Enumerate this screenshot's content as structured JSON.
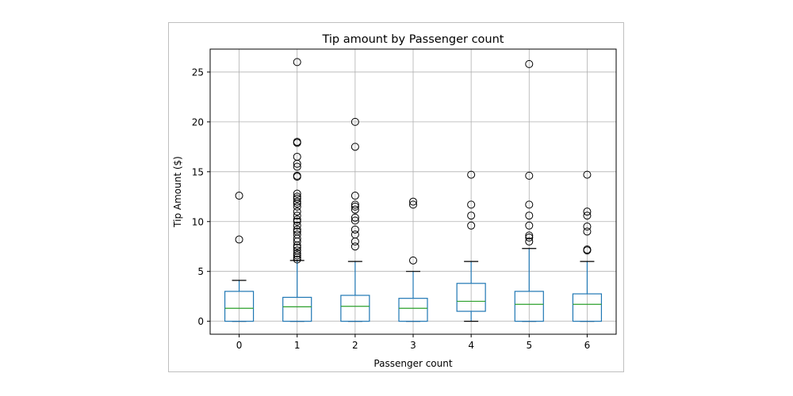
{
  "chart_data": {
    "type": "boxplot",
    "title": "Tip amount by Passenger count",
    "xlabel": "Passenger count",
    "ylabel": "Tip Amount ($)",
    "ylim": [
      -1.3,
      27.3
    ],
    "yticks": [
      0,
      5,
      10,
      15,
      20,
      25
    ],
    "grid": true,
    "categories": [
      "0",
      "1",
      "2",
      "3",
      "4",
      "5",
      "6"
    ],
    "boxes": [
      {
        "q1": 0,
        "median": 1.3,
        "q3": 3.0,
        "whisker_low": 0,
        "whisker_high": 4.1,
        "outliers": [
          12.6,
          8.2
        ]
      },
      {
        "q1": 0,
        "median": 1.45,
        "q3": 2.4,
        "whisker_low": 0,
        "whisker_high": 6.1,
        "outliers": [
          26.0,
          18.0,
          17.9,
          16.5,
          15.8,
          15.5,
          14.6,
          14.5,
          12.8,
          12.5,
          12.3,
          12.0,
          11.8,
          11.5,
          11.0,
          10.6,
          10.2,
          10.0,
          9.6,
          9.2,
          9.0,
          8.7,
          8.3,
          8.0,
          7.6,
          7.4,
          7.1,
          6.8,
          6.6,
          6.4,
          6.2
        ]
      },
      {
        "q1": 0,
        "median": 1.5,
        "q3": 2.6,
        "whisker_low": 0,
        "whisker_high": 6.0,
        "outliers": [
          20.0,
          17.5,
          12.6,
          11.7,
          11.5,
          11.2,
          10.4,
          10.1,
          9.2,
          8.7,
          8.0,
          7.5
        ]
      },
      {
        "q1": 0,
        "median": 1.3,
        "q3": 2.3,
        "whisker_low": 0,
        "whisker_high": 5.0,
        "outliers": [
          12.0,
          11.7,
          6.1
        ]
      },
      {
        "q1": 1.0,
        "median": 2.0,
        "q3": 3.8,
        "whisker_low": 0,
        "whisker_high": 6.0,
        "outliers": [
          14.7,
          11.7,
          10.6,
          9.6
        ]
      },
      {
        "q1": 0,
        "median": 1.7,
        "q3": 3.0,
        "whisker_low": 0,
        "whisker_high": 7.3,
        "outliers": [
          25.8,
          14.6,
          11.7,
          10.6,
          9.6,
          8.6,
          8.4,
          8.0
        ]
      },
      {
        "q1": 0,
        "median": 1.7,
        "q3": 2.75,
        "whisker_low": 0,
        "whisker_high": 6.0,
        "outliers": [
          14.7,
          11.0,
          10.6,
          9.5,
          9.0,
          7.2,
          7.1
        ]
      }
    ],
    "colors": {
      "box": "#1f77b4",
      "median": "#2ca02c",
      "grid": "#b0b0b0",
      "outlier": "#000000"
    }
  }
}
